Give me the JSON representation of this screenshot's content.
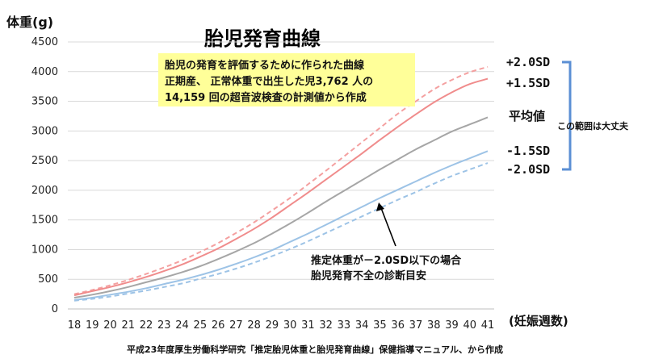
{
  "chart_data": {
    "type": "line",
    "title": "胎児発育曲線",
    "ylabel": "体重(g)",
    "xlabel": "(妊娠週数)",
    "x": [
      18,
      19,
      20,
      21,
      22,
      23,
      24,
      25,
      26,
      27,
      28,
      29,
      30,
      31,
      32,
      33,
      34,
      35,
      36,
      37,
      38,
      39,
      40,
      41
    ],
    "ylim": [
      0,
      4500
    ],
    "yticks": [
      0,
      500,
      1000,
      1500,
      2000,
      2500,
      3000,
      3500,
      4000,
      4500
    ],
    "grid": "horizontal",
    "series": [
      {
        "name": "+2.0SD",
        "color": "#f4a0a0",
        "dash": true,
        "values": [
          250,
          320,
          400,
          490,
          590,
          700,
          820,
          960,
          1110,
          1280,
          1460,
          1660,
          1870,
          2100,
          2330,
          2570,
          2810,
          3050,
          3290,
          3500,
          3700,
          3860,
          3990,
          4080
        ]
      },
      {
        "name": "+1.5SD",
        "color": "#f08c8c",
        "dash": false,
        "values": [
          230,
          300,
          370,
          450,
          540,
          640,
          750,
          880,
          1020,
          1180,
          1350,
          1540,
          1750,
          1960,
          2180,
          2400,
          2620,
          2850,
          3070,
          3280,
          3480,
          3650,
          3790,
          3880
        ]
      },
      {
        "name": "平均値",
        "color": "#a6a6a6",
        "dash": false,
        "values": [
          190,
          240,
          300,
          370,
          450,
          530,
          620,
          720,
          840,
          970,
          1110,
          1270,
          1440,
          1620,
          1810,
          1990,
          2170,
          2350,
          2520,
          2690,
          2840,
          2990,
          3110,
          3230
        ]
      },
      {
        "name": "-1.5SD",
        "color": "#9dc3e6",
        "dash": false,
        "values": [
          150,
          190,
          240,
          290,
          350,
          420,
          490,
          570,
          660,
          760,
          870,
          990,
          1130,
          1270,
          1420,
          1570,
          1720,
          1870,
          2010,
          2150,
          2290,
          2420,
          2540,
          2660
        ]
      },
      {
        "name": "-2.0SD",
        "color": "#9dc3e6",
        "dash": true,
        "values": [
          140,
          170,
          210,
          260,
          310,
          370,
          430,
          510,
          590,
          680,
          780,
          890,
          1010,
          1140,
          1280,
          1420,
          1560,
          1700,
          1840,
          1970,
          2110,
          2240,
          2350,
          2460
        ]
      }
    ],
    "range_label": "この範囲は大丈夫",
    "info_lines": [
      "胎児の発育を評価するために作られた曲線",
      "正期産、 正常体重で出生した児3,762 人の",
      "14,159 回の超音波検査の計測値から作成"
    ],
    "annotation_lines": [
      "推定体重が－2.0SD以下の場合",
      "胎児発育不全の診断目安"
    ],
    "source": "平成23年度厚生労働科学研究「推定胎児体重と胎児発育曲線」保健指導マニュアル、から作成"
  },
  "colors": {
    "info_bg": "#ffff99",
    "bracket": "#5b8fd4",
    "grid": "#d9d9d9",
    "arrow": "#000000"
  }
}
